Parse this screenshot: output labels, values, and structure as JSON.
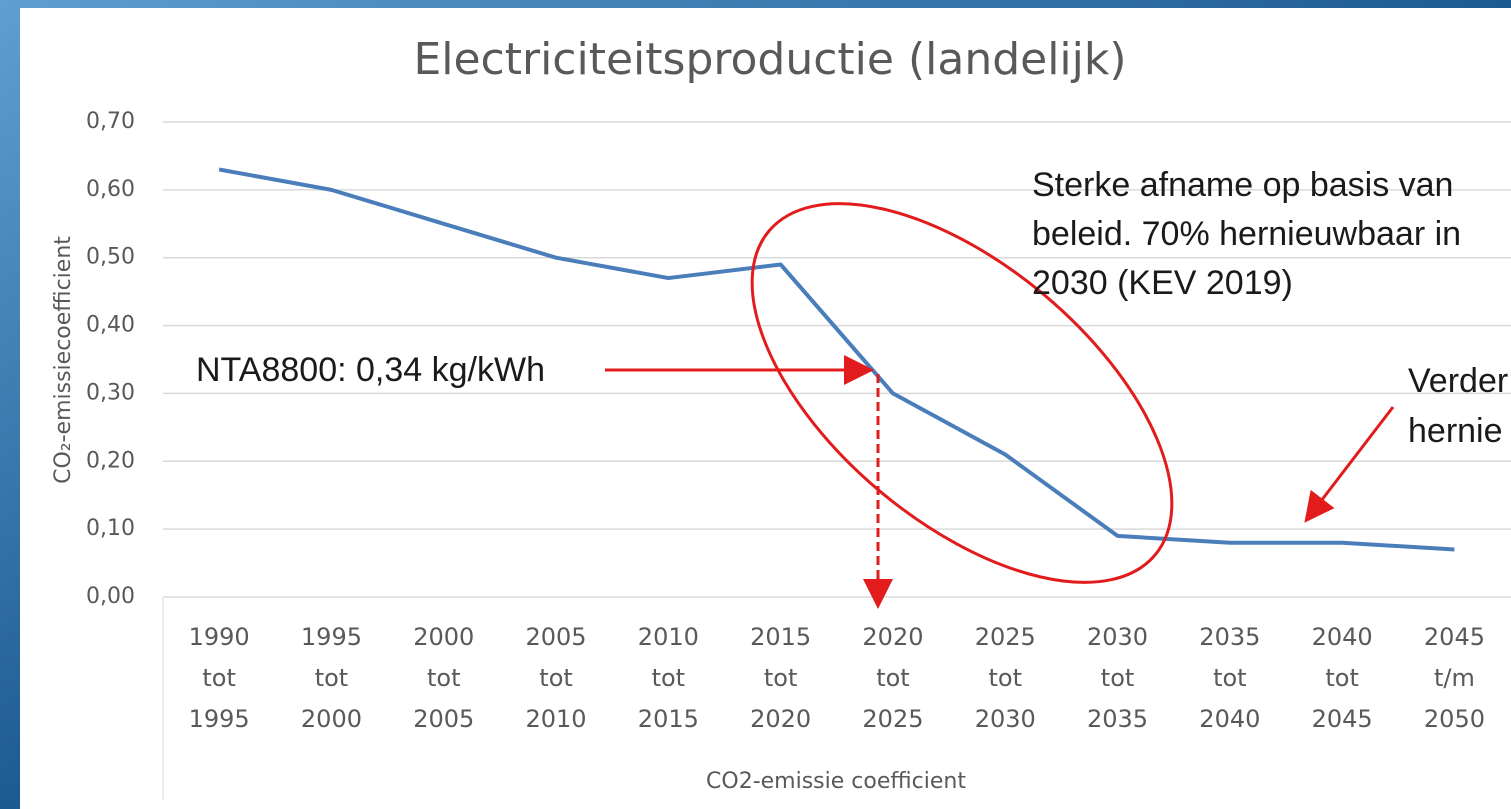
{
  "chart_data": {
    "type": "line",
    "title": "Electriciteitsproductie (landelijk)",
    "y_label": "CO₂-emissiecoefficient",
    "x_label": "CO2-emissie coefficient",
    "categories": [
      [
        "1990",
        "tot",
        "1995"
      ],
      [
        "1995",
        "tot",
        "2000"
      ],
      [
        "2000",
        "tot",
        "2005"
      ],
      [
        "2005",
        "tot",
        "2010"
      ],
      [
        "2010",
        "tot",
        "2015"
      ],
      [
        "2015",
        "tot",
        "2020"
      ],
      [
        "2020",
        "tot",
        "2025"
      ],
      [
        "2025",
        "tot",
        "2030"
      ],
      [
        "2030",
        "tot",
        "2035"
      ],
      [
        "2035",
        "tot",
        "2040"
      ],
      [
        "2040",
        "tot",
        "2045"
      ],
      [
        "2045",
        "t/m",
        "2050"
      ]
    ],
    "values": [
      0.63,
      0.6,
      0.55,
      0.5,
      0.47,
      0.49,
      0.3,
      0.21,
      0.09,
      0.08,
      0.08,
      0.07
    ],
    "color": "#4a7ebb",
    "ylim": [
      0,
      0.7
    ],
    "yticks": [
      {
        "value": 0,
        "label": "0,00"
      },
      {
        "value": 0.1,
        "label": "0,10"
      },
      {
        "value": 0.2,
        "label": "0,20"
      },
      {
        "value": 0.3,
        "label": "0,30"
      },
      {
        "value": 0.4,
        "label": "0,40"
      },
      {
        "value": 0.5,
        "label": "0,50"
      },
      {
        "value": 0.6,
        "label": "0,60"
      },
      {
        "value": 0.7,
        "label": "0,70"
      }
    ],
    "grid": true,
    "annotations": {
      "nta": "NTA8800: 0,34 kg/kWh",
      "policy": [
        "Sterke afname op basis van",
        "beleid. 70% hernieuwbaar in",
        "2030 (KEV 2019)"
      ],
      "further": [
        "Verder",
        "hernie"
      ]
    }
  }
}
